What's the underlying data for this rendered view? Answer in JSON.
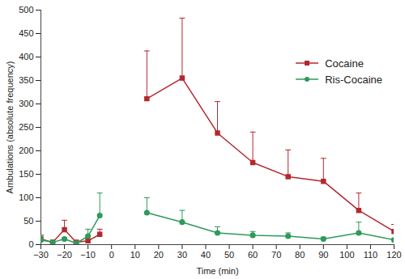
{
  "chart_data": {
    "type": "line",
    "x_label": "Time (min)",
    "y_label": "Ambulations (absolute frequency)",
    "x": [
      -30,
      -25,
      -20,
      -15,
      -10,
      -5,
      0,
      15,
      30,
      45,
      60,
      75,
      90,
      105,
      120
    ],
    "series": [
      {
        "name": "Cocaine",
        "color": "#b3282e",
        "marker": "square",
        "line_style": "solid",
        "values": [
          12,
          5,
          32,
          5,
          8,
          22,
          null,
          311,
          355,
          238,
          175,
          145,
          135,
          73,
          28
        ],
        "errors": [
          8,
          2,
          20,
          3,
          4,
          11,
          null,
          102,
          128,
          67,
          65,
          57,
          49,
          37,
          15
        ]
      },
      {
        "name": "Ris-Cocaine",
        "color": "#2e9a5c",
        "marker": "circle",
        "line_style": "solid",
        "values": [
          10,
          5,
          12,
          3,
          18,
          62,
          null,
          68,
          48,
          25,
          20,
          18,
          12,
          25,
          10
        ],
        "errors": [
          10,
          2,
          3,
          2,
          15,
          48,
          null,
          32,
          25,
          13,
          8,
          7,
          4,
          23,
          3
        ]
      }
    ],
    "xlim": [
      -30,
      120
    ],
    "xticks": [
      -30,
      -20,
      -10,
      0,
      10,
      20,
      30,
      40,
      50,
      60,
      70,
      80,
      90,
      100,
      110,
      120
    ],
    "ylim": [
      0,
      500
    ],
    "yticks": [
      0,
      50,
      100,
      150,
      200,
      250,
      300,
      350,
      400,
      450,
      500
    ],
    "legend": "top-right",
    "grid": false
  }
}
